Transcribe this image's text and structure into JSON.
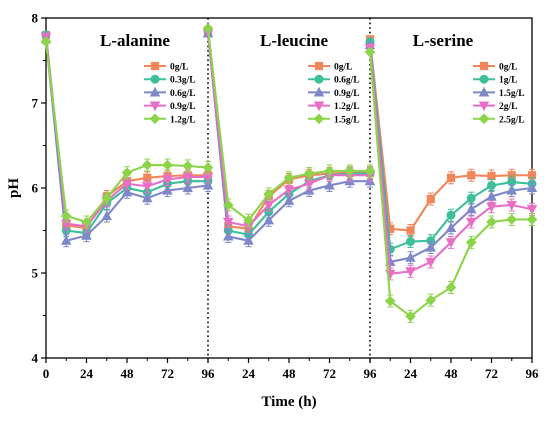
{
  "chart_data": {
    "type": "line",
    "xlabel": "Time (h)",
    "ylabel": "pH",
    "ylim": [
      4,
      8
    ],
    "y_ticks": [
      4,
      5,
      6,
      7,
      8
    ],
    "x_ticks": [
      0,
      24,
      48,
      72,
      96
    ],
    "panels": [
      {
        "title": "L-alanine",
        "legend_position": "top-right",
        "series": [
          {
            "name": "0g/L",
            "color": "#f0865a",
            "marker": "square",
            "x": [
              0,
              12,
              24,
              36,
              48,
              60,
              72,
              84,
              96
            ],
            "y": [
              7.8,
              5.56,
              5.53,
              5.9,
              6.08,
              6.12,
              6.14,
              6.15,
              6.15
            ]
          },
          {
            "name": "0.3g/L",
            "color": "#3dbf9b",
            "marker": "circle",
            "x": [
              0,
              12,
              24,
              36,
              48,
              60,
              72,
              84,
              96
            ],
            "y": [
              7.8,
              5.5,
              5.47,
              5.82,
              6.0,
              5.95,
              6.05,
              6.08,
              6.08
            ]
          },
          {
            "name": "0.6g/L",
            "color": "#7f88c8",
            "marker": "triangle-up",
            "x": [
              0,
              12,
              24,
              36,
              48,
              60,
              72,
              84,
              96
            ],
            "y": [
              7.75,
              5.38,
              5.44,
              5.67,
              5.95,
              5.88,
              5.97,
              6.0,
              6.03
            ]
          },
          {
            "name": "0.9g/L",
            "color": "#e86fc6",
            "marker": "triangle-down",
            "x": [
              0,
              12,
              24,
              36,
              48,
              60,
              72,
              84,
              96
            ],
            "y": [
              7.78,
              5.58,
              5.55,
              5.85,
              6.05,
              6.02,
              6.1,
              6.13,
              6.13
            ]
          },
          {
            "name": "1.2g/L",
            "color": "#8cd44a",
            "marker": "diamond",
            "x": [
              0,
              12,
              24,
              36,
              48,
              60,
              72,
              84,
              96
            ],
            "y": [
              7.72,
              5.67,
              5.6,
              5.88,
              6.18,
              6.27,
              6.27,
              6.26,
              6.24
            ]
          }
        ]
      },
      {
        "title": "L-leucine",
        "legend_position": "top-right",
        "series": [
          {
            "name": "0g/L",
            "color": "#f0865a",
            "marker": "square",
            "x": [
              0,
              12,
              24,
              36,
              48,
              60,
              72,
              84,
              96
            ],
            "y": [
              7.85,
              5.55,
              5.52,
              5.9,
              6.1,
              6.15,
              6.17,
              6.18,
              6.18
            ]
          },
          {
            "name": "0.6g/L",
            "color": "#3dbf9b",
            "marker": "circle",
            "x": [
              0,
              12,
              24,
              36,
              48,
              60,
              72,
              84,
              96
            ],
            "y": [
              7.85,
              5.5,
              5.45,
              5.72,
              5.93,
              6.08,
              6.15,
              6.17,
              6.17
            ]
          },
          {
            "name": "0.9g/L",
            "color": "#7f88c8",
            "marker": "triangle-up",
            "x": [
              0,
              12,
              24,
              36,
              48,
              60,
              72,
              84,
              96
            ],
            "y": [
              7.82,
              5.43,
              5.38,
              5.62,
              5.85,
              5.97,
              6.03,
              6.08,
              6.08
            ]
          },
          {
            "name": "1.2g/L",
            "color": "#e86fc6",
            "marker": "triangle-down",
            "x": [
              0,
              12,
              24,
              36,
              48,
              60,
              72,
              84,
              96
            ],
            "y": [
              7.83,
              5.6,
              5.55,
              5.8,
              5.98,
              6.05,
              6.15,
              6.15,
              6.15
            ]
          },
          {
            "name": "1.5g/L",
            "color": "#8cd44a",
            "marker": "diamond",
            "x": [
              0,
              12,
              24,
              36,
              48,
              60,
              72,
              84,
              96
            ],
            "y": [
              7.88,
              5.8,
              5.62,
              5.93,
              6.12,
              6.17,
              6.2,
              6.2,
              6.2
            ]
          }
        ]
      },
      {
        "title": "L-serine",
        "legend_position": "top-right",
        "series": [
          {
            "name": "0g/L",
            "color": "#f0865a",
            "marker": "square",
            "x": [
              0,
              12,
              24,
              36,
              48,
              60,
              72,
              84,
              96
            ],
            "y": [
              7.75,
              5.52,
              5.5,
              5.87,
              6.12,
              6.15,
              6.14,
              6.15,
              6.15
            ]
          },
          {
            "name": "1g/L",
            "color": "#3dbf9b",
            "marker": "circle",
            "x": [
              0,
              12,
              24,
              36,
              48,
              60,
              72,
              84,
              96
            ],
            "y": [
              7.72,
              5.28,
              5.37,
              5.38,
              5.68,
              5.88,
              6.03,
              6.07,
              6.05
            ]
          },
          {
            "name": "1.5g/L",
            "color": "#7f88c8",
            "marker": "triangle-up",
            "x": [
              0,
              12,
              24,
              36,
              48,
              60,
              72,
              84,
              96
            ],
            "y": [
              7.68,
              5.13,
              5.18,
              5.3,
              5.53,
              5.75,
              5.9,
              5.97,
              6.0
            ]
          },
          {
            "name": "2g/L",
            "color": "#e86fc6",
            "marker": "triangle-down",
            "x": [
              0,
              12,
              24,
              36,
              48,
              60,
              72,
              84,
              96
            ],
            "y": [
              7.65,
              4.99,
              5.02,
              5.13,
              5.36,
              5.6,
              5.78,
              5.8,
              5.75
            ]
          },
          {
            "name": "2.5g/L",
            "color": "#8cd44a",
            "marker": "diamond",
            "x": [
              0,
              12,
              24,
              36,
              48,
              60,
              72,
              84,
              96
            ],
            "y": [
              7.6,
              4.67,
              4.49,
              4.68,
              4.83,
              5.36,
              5.6,
              5.63,
              5.63
            ]
          }
        ]
      }
    ]
  }
}
